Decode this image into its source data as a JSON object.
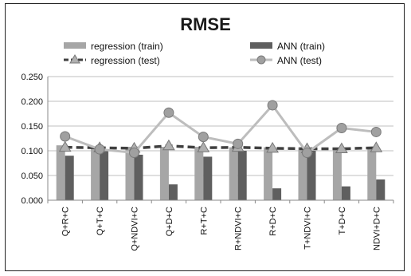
{
  "chart_data": {
    "type": "bar",
    "title": "RMSE",
    "xlabel": "",
    "ylabel": "",
    "ylim": [
      0,
      0.25
    ],
    "yticks": [
      "0.000",
      "0.050",
      "0.100",
      "0.150",
      "0.200",
      "0.250"
    ],
    "ytick_values": [
      0,
      0.05,
      0.1,
      0.15,
      0.2,
      0.25
    ],
    "grid": true,
    "legend_position": "top",
    "categories": [
      "Q+R+C",
      "Q+T+C",
      "Q+NDVI+C",
      "Q+D+C",
      "R+T+C",
      "R+NDVI+C",
      "R+D+C",
      "T+NDVI+C",
      "T+D+C",
      "NDVI+D+C"
    ],
    "series": [
      {
        "name": "regression (train)",
        "kind": "bar",
        "color": "#a6a6a6",
        "values": [
          0.111,
          0.108,
          0.108,
          0.108,
          0.108,
          0.107,
          0.107,
          0.107,
          0.106,
          0.107
        ]
      },
      {
        "name": "ANN (train)",
        "kind": "bar",
        "color": "#5f5f5f",
        "values": [
          0.09,
          0.1,
          0.092,
          0.032,
          0.088,
          0.1,
          0.024,
          0.1,
          0.028,
          0.042
        ]
      },
      {
        "name": "regression (test)",
        "kind": "line",
        "style": "dashed",
        "marker": "triangle",
        "color": "#404040",
        "values": [
          0.107,
          0.106,
          0.105,
          0.11,
          0.106,
          0.107,
          0.105,
          0.104,
          0.104,
          0.106
        ]
      },
      {
        "name": "ANN (test)",
        "kind": "line",
        "style": "solid",
        "marker": "circle",
        "color": "#bdbdbd",
        "marker_color": "#a0a0a0",
        "values": [
          0.129,
          0.103,
          0.096,
          0.177,
          0.128,
          0.114,
          0.192,
          0.096,
          0.146,
          0.138
        ]
      }
    ]
  }
}
